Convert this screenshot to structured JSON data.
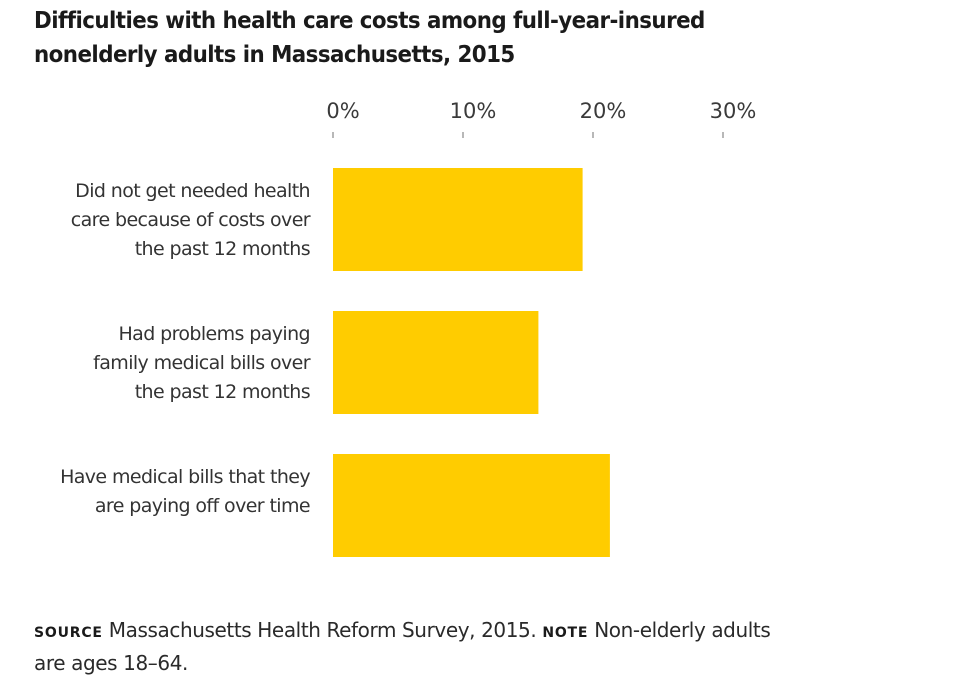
{
  "chart_data": {
    "type": "bar",
    "orientation": "horizontal",
    "title": "Difficulties with health care costs among full-year-insured nonelderly adults in Massachusetts, 2015",
    "title_lines": [
      "Difficulties with health care costs among full-year-insured",
      "nonelderly adults in Massachusetts, 2015"
    ],
    "categories": [
      [
        "Did not get needed health",
        "care because of costs over",
        "the past 12 months"
      ],
      [
        "Had problems paying",
        "family medical bills over",
        "the past 12 months"
      ],
      [
        "Have medical bills that they",
        "are paying off over time"
      ]
    ],
    "values": [
      19.2,
      15.8,
      21.3
    ],
    "value_unit": "%",
    "xlim": [
      0,
      30
    ],
    "xticks": [
      0,
      10,
      20,
      30
    ],
    "xtick_labels": [
      "0%",
      "10%",
      "20%",
      "30%"
    ],
    "xaxis_position": "top",
    "xlabel": "",
    "ylabel": "",
    "grid": false,
    "legend": "none",
    "bar_color": "#FFCC00"
  },
  "footer": {
    "source_label": "Source",
    "source_text": " Massachusetts Health Reform Survey, 2015. ",
    "note_label": "Note",
    "note_text": " Non-elderly adults are ages 18–64."
  }
}
